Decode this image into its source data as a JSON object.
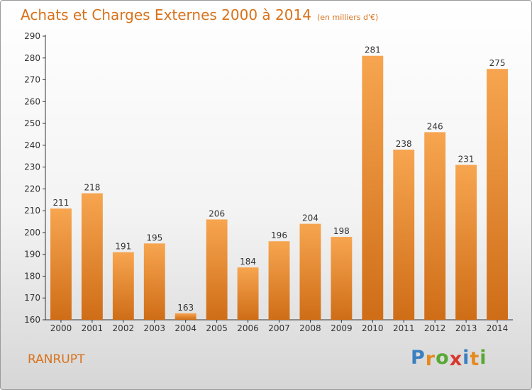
{
  "header": {
    "title": "Achats et Charges Externes 2000 à 2014",
    "subtitle": "(en milliers d'€)"
  },
  "footer": {
    "town": "RANRUPT",
    "logo": {
      "letters": [
        "P",
        "r",
        "o",
        "x",
        "i",
        "t",
        "i"
      ]
    }
  },
  "colors": {
    "bar_top": "#f7a550",
    "bar_bottom": "#cf6d17",
    "title": "#d8721b",
    "logo": [
      "#3a7fc1",
      "#e58a1f",
      "#58a834",
      "#d9362c",
      "#3a7fc1",
      "#e58a1f",
      "#58a834"
    ]
  },
  "chart_data": {
    "type": "bar",
    "title": "Achats et Charges Externes 2000 à 2014",
    "subtitle": "(en milliers d'€)",
    "categories": [
      "2000",
      "2001",
      "2002",
      "2003",
      "2004",
      "2005",
      "2006",
      "2007",
      "2008",
      "2009",
      "2010",
      "2011",
      "2012",
      "2013",
      "2014"
    ],
    "values": [
      211,
      218,
      191,
      195,
      163,
      206,
      184,
      196,
      204,
      198,
      281,
      238,
      246,
      231,
      275
    ],
    "ylim": [
      160,
      290
    ],
    "yticks": [
      160,
      170,
      180,
      190,
      200,
      210,
      220,
      230,
      240,
      250,
      260,
      270,
      280,
      290
    ],
    "grid": false,
    "data_labels": true
  }
}
